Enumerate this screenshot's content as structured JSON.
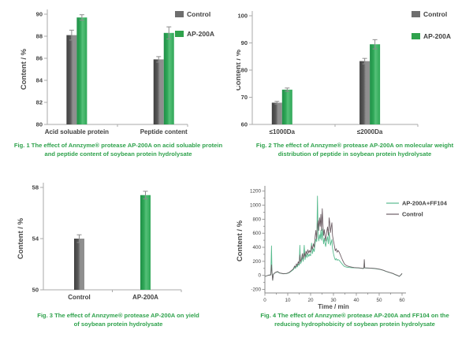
{
  "page": {
    "background": "#ffffff"
  },
  "colors": {
    "accent_green": "#2fa24c",
    "bar_gray_dark": "#3f3f3f",
    "bar_gray_mid": "#5a5a5a",
    "bar_gray_light": "#8f8f8f",
    "bar_green_dark": "#1f8f47",
    "bar_green_mid": "#2fa757",
    "bar_green_light": "#55c078",
    "legend_gray": "#6e6e6e",
    "legend_green": "#2fa24c",
    "line_green": "#58bb8e",
    "line_gray": "#6e5f66",
    "axis": "#aaaaaa",
    "tick_text": "#3f3f3f",
    "label_text": "#4a4a4a",
    "error_bar": "#8c8c8c"
  },
  "chart_data": [
    {
      "type": "bar",
      "caption": "Fig. 1  The effect of Annzyme® protease AP-200A on acid soluable protein and peptide content of soybean protein hydrolysate",
      "ylabel": "Content / %",
      "ylim": [
        80,
        90
      ],
      "ytick_step": 2,
      "grid": false,
      "legend_position": "right",
      "categories": [
        "Acid soluable protein",
        "Peptide content"
      ],
      "series": [
        {
          "name": "Control",
          "color": "gray",
          "values": [
            88.1,
            85.9
          ],
          "errors": [
            0.45,
            0.25
          ]
        },
        {
          "name": "AP-200A",
          "color": "green",
          "values": [
            89.7,
            88.3
          ],
          "errors": [
            0.25,
            0.55
          ]
        }
      ]
    },
    {
      "type": "bar",
      "caption": "Fig. 2  The effect of Annzyme® protease AP-200A on molecular weight distribution of peptide in soybean protein hydrolysate",
      "ylabel": "Content / %",
      "ylim": [
        60,
        100
      ],
      "ytick_step": 10,
      "grid": false,
      "legend_position": "right",
      "categories": [
        "≤1000Da",
        "≤2000Da"
      ],
      "series": [
        {
          "name": "Control",
          "color": "gray",
          "values": [
            68.0,
            83.3
          ],
          "errors": [
            0.5,
            1.0
          ]
        },
        {
          "name": "AP-200A",
          "color": "green",
          "values": [
            72.8,
            89.5
          ],
          "errors": [
            0.6,
            1.7
          ]
        }
      ]
    },
    {
      "type": "bar",
      "caption": "Fig. 3  The effect of Annzyme® protease AP-200A on yield of soybean protein hydrolysate",
      "ylabel": "Content / %",
      "ylim": [
        50,
        58
      ],
      "ytick_step": 4,
      "grid": false,
      "legend_position": "none",
      "categories": [
        "Control",
        "AP-200A"
      ],
      "values": [
        54.0,
        57.4
      ],
      "errors": [
        0.3,
        0.3
      ],
      "bar_colors": [
        "gray",
        "green"
      ]
    },
    {
      "type": "line",
      "caption": "Fig. 4  The effect of Annzyme® protease AP-200A  and FF104 on the reducing hydrophobicity of soybean protein hydrolysate",
      "ylabel": "Content / %",
      "xlabel": "Time / min",
      "xlim": [
        0,
        60
      ],
      "xtick_step": 10,
      "yticks": [
        -200,
        0,
        200,
        400,
        600,
        800,
        1000,
        1200
      ],
      "ylim": [
        -250,
        1230
      ],
      "legend_position": "right",
      "series": [
        {
          "name": "AP-200A+FF104",
          "color": "line_green",
          "points": [
            [
              0,
              -15
            ],
            [
              1.5,
              2
            ],
            [
              2.6,
              8
            ],
            [
              2.9,
              420
            ],
            [
              3.1,
              60
            ],
            [
              3.4,
              -70
            ],
            [
              3.7,
              15
            ],
            [
              4.5,
              38
            ],
            [
              5.5,
              50
            ],
            [
              6.5,
              32
            ],
            [
              8,
              22
            ],
            [
              9.5,
              26
            ],
            [
              10.5,
              36
            ],
            [
              11.5,
              58
            ],
            [
              12.5,
              85
            ],
            [
              13,
              115
            ],
            [
              13.4,
              100
            ],
            [
              13.8,
              140
            ],
            [
              14.2,
              120
            ],
            [
              14.6,
              165
            ],
            [
              15,
              145
            ],
            [
              15.3,
              430
            ],
            [
              15.6,
              165
            ],
            [
              16,
              195
            ],
            [
              16.4,
              260
            ],
            [
              16.8,
              200
            ],
            [
              17.2,
              430
            ],
            [
              17.6,
              225
            ],
            [
              18,
              300
            ],
            [
              18.4,
              255
            ],
            [
              18.8,
              310
            ],
            [
              19.2,
              270
            ],
            [
              19.6,
              300
            ],
            [
              20,
              280
            ],
            [
              20.4,
              460
            ],
            [
              20.8,
              310
            ],
            [
              21.2,
              380
            ],
            [
              21.6,
              340
            ],
            [
              22,
              470
            ],
            [
              22.4,
              520
            ],
            [
              22.7,
              480
            ],
            [
              23,
              1130
            ],
            [
              23.3,
              560
            ],
            [
              23.6,
              490
            ],
            [
              23.9,
              580
            ],
            [
              24.2,
              520
            ],
            [
              24.5,
              640
            ],
            [
              24.8,
              500
            ],
            [
              25.1,
              660
            ],
            [
              25.4,
              540
            ],
            [
              25.7,
              450
            ],
            [
              26,
              530
            ],
            [
              26.3,
              460
            ],
            [
              26.6,
              410
            ],
            [
              27,
              490
            ],
            [
              27.4,
              550
            ],
            [
              27.8,
              450
            ],
            [
              28.1,
              610
            ],
            [
              28.4,
              530
            ],
            [
              28.7,
              430
            ],
            [
              29,
              470
            ],
            [
              29.3,
              510
            ],
            [
              29.6,
              390
            ],
            [
              30,
              310
            ],
            [
              30.4,
              255
            ],
            [
              30.8,
              220
            ],
            [
              31.2,
              240
            ],
            [
              31.6,
              215
            ],
            [
              32,
              225
            ],
            [
              32.5,
              215
            ],
            [
              33,
              195
            ],
            [
              33.5,
              175
            ],
            [
              34,
              155
            ],
            [
              34.5,
              135
            ],
            [
              35,
              125
            ],
            [
              36,
              115
            ],
            [
              37,
              112
            ],
            [
              38,
              110
            ],
            [
              39,
              108
            ],
            [
              40,
              107
            ],
            [
              41,
              105
            ],
            [
              42,
              102
            ],
            [
              43,
              98
            ],
            [
              43.3,
              102
            ],
            [
              43.5,
              215
            ],
            [
              43.7,
              105
            ],
            [
              44.5,
              104
            ],
            [
              46,
              102
            ],
            [
              48,
              98
            ],
            [
              50,
              88
            ],
            [
              51,
              80
            ],
            [
              52,
              70
            ],
            [
              53,
              56
            ],
            [
              54,
              46
            ],
            [
              55,
              36
            ],
            [
              56,
              26
            ],
            [
              57,
              10
            ],
            [
              58,
              -2
            ],
            [
              58.8,
              -14
            ],
            [
              59.4,
              3
            ],
            [
              60,
              26
            ]
          ]
        },
        {
          "name": "Control",
          "color": "line_gray",
          "points": [
            [
              0,
              -15
            ],
            [
              1.5,
              2
            ],
            [
              2.6,
              8
            ],
            [
              2.9,
              150
            ],
            [
              3.1,
              40
            ],
            [
              3.4,
              -70
            ],
            [
              3.7,
              15
            ],
            [
              4.5,
              40
            ],
            [
              5.5,
              55
            ],
            [
              6.5,
              35
            ],
            [
              8,
              25
            ],
            [
              9.5,
              28
            ],
            [
              10.5,
              40
            ],
            [
              11.5,
              65
            ],
            [
              12.5,
              95
            ],
            [
              13,
              135
            ],
            [
              13.4,
              115
            ],
            [
              13.8,
              165
            ],
            [
              14.2,
              140
            ],
            [
              14.6,
              195
            ],
            [
              15,
              165
            ],
            [
              15.3,
              290
            ],
            [
              15.6,
              195
            ],
            [
              16,
              230
            ],
            [
              16.4,
              310
            ],
            [
              16.8,
              235
            ],
            [
              17.2,
              320
            ],
            [
              17.6,
              265
            ],
            [
              18,
              345
            ],
            [
              18.4,
              300
            ],
            [
              18.8,
              365
            ],
            [
              19.2,
              320
            ],
            [
              19.6,
              355
            ],
            [
              20,
              330
            ],
            [
              20.4,
              420
            ],
            [
              20.8,
              370
            ],
            [
              21.2,
              450
            ],
            [
              21.6,
              400
            ],
            [
              22,
              560
            ],
            [
              22.3,
              640
            ],
            [
              22.6,
              520
            ],
            [
              23,
              710
            ],
            [
              23.3,
              780
            ],
            [
              23.6,
              640
            ],
            [
              23.9,
              820
            ],
            [
              24.2,
              700
            ],
            [
              24.5,
              870
            ],
            [
              24.8,
              640
            ],
            [
              25.1,
              950
            ],
            [
              25.4,
              720
            ],
            [
              25.7,
              570
            ],
            [
              26,
              650
            ],
            [
              26.3,
              560
            ],
            [
              26.6,
              490
            ],
            [
              27,
              610
            ],
            [
              27.4,
              690
            ],
            [
              27.8,
              570
            ],
            [
              28.1,
              820
            ],
            [
              28.4,
              740
            ],
            [
              28.7,
              610
            ],
            [
              29,
              690
            ],
            [
              29.3,
              750
            ],
            [
              29.6,
              570
            ],
            [
              30,
              490
            ],
            [
              30.4,
              420
            ],
            [
              30.8,
              350
            ],
            [
              31.2,
              380
            ],
            [
              31.6,
              330
            ],
            [
              32,
              355
            ],
            [
              32.5,
              330
            ],
            [
              33,
              295
            ],
            [
              33.5,
              255
            ],
            [
              34,
              215
            ],
            [
              34.5,
              180
            ],
            [
              35,
              155
            ],
            [
              36,
              135
            ],
            [
              37,
              125
            ],
            [
              38,
              118
            ],
            [
              39,
              112
            ],
            [
              40,
              110
            ],
            [
              41,
              108
            ],
            [
              42,
              104
            ],
            [
              43,
              100
            ],
            [
              43.3,
              104
            ],
            [
              43.5,
              225
            ],
            [
              43.7,
              108
            ],
            [
              44.5,
              106
            ],
            [
              46,
              104
            ],
            [
              48,
              100
            ],
            [
              50,
              90
            ],
            [
              51,
              82
            ],
            [
              52,
              72
            ],
            [
              53,
              58
            ],
            [
              54,
              48
            ],
            [
              55,
              38
            ],
            [
              56,
              28
            ],
            [
              57,
              12
            ],
            [
              58,
              0
            ],
            [
              58.8,
              -12
            ],
            [
              59.4,
              5
            ],
            [
              60,
              28
            ]
          ]
        }
      ]
    }
  ]
}
